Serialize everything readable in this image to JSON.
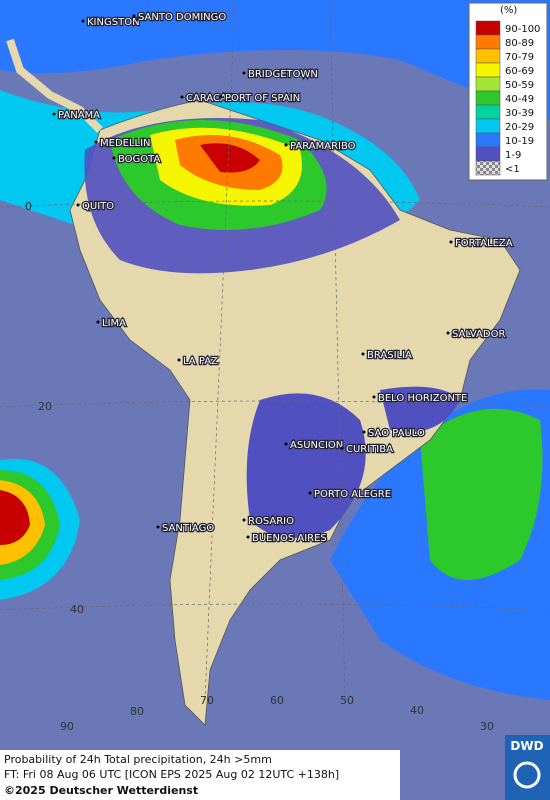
{
  "legend": {
    "title": "(%)",
    "entries": [
      {
        "label": "90-100",
        "color": "#c80000"
      },
      {
        "label": "80-89",
        "color": "#ff7a00"
      },
      {
        "label": "70-79",
        "color": "#ffc000"
      },
      {
        "label": "60-69",
        "color": "#f5f500"
      },
      {
        "label": "50-59",
        "color": "#a0e632"
      },
      {
        "label": "40-49",
        "color": "#2cc82c"
      },
      {
        "label": "30-39",
        "color": "#00d2a0"
      },
      {
        "label": "20-29",
        "color": "#00c8f0"
      },
      {
        "label": "10-19",
        "color": "#2a78ff"
      },
      {
        "label": "1-9",
        "color": "#5050c0"
      },
      {
        "label": "<1",
        "color": "#bbbbbb"
      }
    ]
  },
  "cities": [
    "KINGSTON",
    "SANTO DOMINGO",
    "BRIDGETOWN",
    "CARACAS",
    "PORT OF SPAIN",
    "PANAMA",
    "MEDELLIN",
    "BOGOTA",
    "PARAMARIBO",
    "QUITO",
    "FORTALEZA",
    "LIMA",
    "SALVADOR",
    "BRASILIA",
    "LA PAZ",
    "BELO HORIZONTE",
    "SAO PAULO",
    "ASUNCION",
    "CURITIBA",
    "PORTO ALEGRE",
    "SANTIAGO",
    "ROSARIO",
    "BUENOS AIRES"
  ],
  "latitude_labels": [
    0,
    20,
    40
  ],
  "longitude_labels": [
    90,
    80,
    70,
    60,
    50,
    40,
    30
  ],
  "footer": {
    "line1": "Probability of 24h Total precipitation, 24h >5mm",
    "line2": "FT: Fri 08 Aug 06 UTC [ICON EPS 2025 Aug 02 12UTC +138h]",
    "copyright": "©2025 Deutscher Wetterdienst"
  },
  "logo": "DWD"
}
